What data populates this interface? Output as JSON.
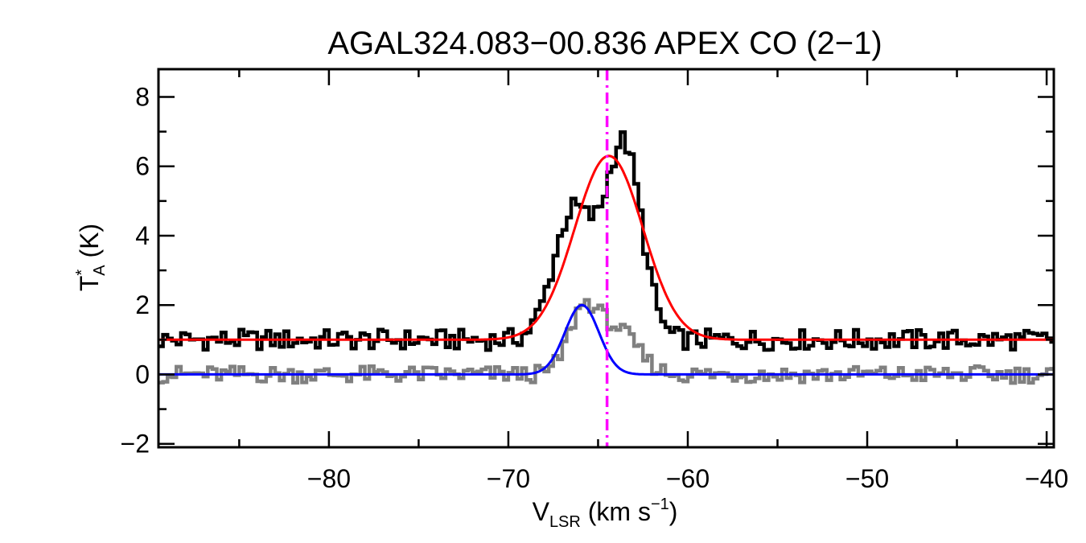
{
  "chart_data": {
    "type": "line",
    "title": "AGAL324.083−00.836  APEX CO (2−1)",
    "xlabel": {
      "main": "V",
      "sub": "LSR",
      "tail": " (km s",
      "sup": "−1",
      "close": ")"
    },
    "ylabel": {
      "main": "T",
      "sup": "*",
      "sub": "A",
      "tail": " (K)"
    },
    "xlim": [
      -89.5,
      -39.6
    ],
    "ylim": [
      -2.1,
      8.8
    ],
    "x_ticks": [
      -80,
      -70,
      -60,
      -50,
      -40
    ],
    "x_tick_labels": [
      "−80",
      "−70",
      "−60",
      "−50",
      "−40"
    ],
    "y_ticks": [
      -2,
      0,
      2,
      4,
      6,
      8
    ],
    "y_tick_labels": [
      "−2",
      "0",
      "2",
      "4",
      "6",
      "8"
    ],
    "grid": false,
    "legend": "none",
    "vline": {
      "x": -64.5,
      "color": "#ff00ff",
      "style": "dash-dot"
    },
    "series": [
      {
        "kind": "step",
        "color": "#000000",
        "offset": 1.0,
        "profile": {
          "type": "two-gaussian",
          "a1": 3.7,
          "c1": -66.5,
          "s1": 1.1,
          "a2": 5.6,
          "c2": -63.7,
          "s2": 1.0
        },
        "noise_amplitude": 0.3
      },
      {
        "kind": "step",
        "color": "#808080",
        "offset": 0.0,
        "profile": {
          "type": "two-gaussian",
          "a1": 1.6,
          "c1": -66.0,
          "s1": 0.8,
          "a2": 1.3,
          "c2": -64.2,
          "s2": 1.2
        },
        "noise_amplitude": 0.25
      },
      {
        "kind": "fit",
        "color": "#ff0000",
        "fit": {
          "amplitude": 5.3,
          "center": -64.4,
          "sigma": 1.9,
          "baseline": 1.0
        }
      },
      {
        "kind": "fit",
        "color": "#0000ff",
        "fit": {
          "amplitude": 2.0,
          "center": -65.9,
          "sigma": 0.95,
          "baseline": 0.0
        }
      }
    ]
  }
}
